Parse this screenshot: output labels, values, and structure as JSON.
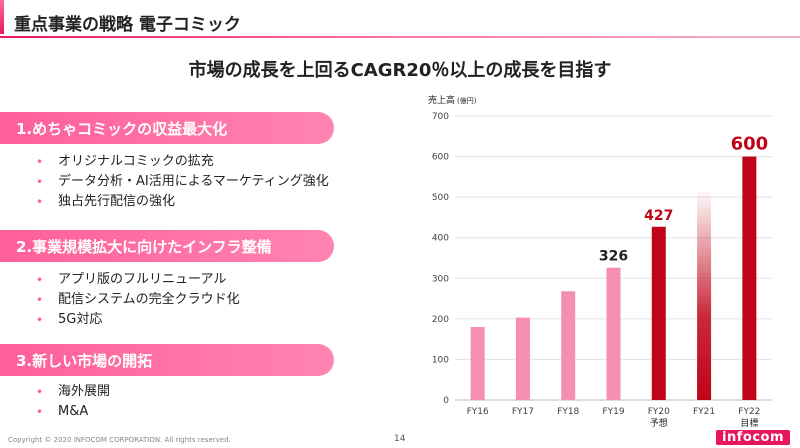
{
  "header": {
    "title": "重点事業の戦略 電子コミック"
  },
  "headline": "市場の成長を上回るCAGR20％以上の成長を目指す",
  "sections": [
    {
      "title": "1.めちゃコミックの収益最大化",
      "bullets": [
        "オリジナルコミックの拡充",
        "データ分析・AI活用によるマーケティング強化",
        "独占先行配信の強化"
      ]
    },
    {
      "title": "2.事業規模拡大に向けたインフラ整備",
      "bullets": [
        "アプリ版のフルリニューアル",
        "配信システムの完全クラウド化",
        "5G対応"
      ]
    },
    {
      "title": "3.新しい市場の開拓",
      "bullets": [
        "海外展開",
        "M&A"
      ]
    }
  ],
  "chart_data": {
    "type": "bar",
    "ylabel": "売上高",
    "yunit": "(億円)",
    "ylim": [
      0,
      700
    ],
    "yticks": [
      "0",
      "100",
      "200",
      "300",
      "400",
      "500",
      "600",
      "700"
    ],
    "grid": true,
    "categories": [
      "FY16",
      "FY17",
      "FY18",
      "FY19",
      "FY20",
      "FY21",
      "FY22"
    ],
    "values": [
      180,
      203,
      268,
      326,
      427,
      520,
      600
    ],
    "sublabels": [
      "",
      "",
      "",
      "",
      "予想",
      "",
      "目標"
    ],
    "value_labels": [
      "",
      "",
      "",
      "326",
      "427",
      "",
      "600"
    ],
    "colors": {
      "actual": "#f48fb1",
      "forecast": "#c00418",
      "label_actual": "#222222",
      "label_forecast": "#c00418"
    }
  },
  "footer": {
    "copyright": "Copyright © 2020 INFOCOM CORPORATION. All rights reserved.",
    "page": "14",
    "logo": "infocom"
  }
}
